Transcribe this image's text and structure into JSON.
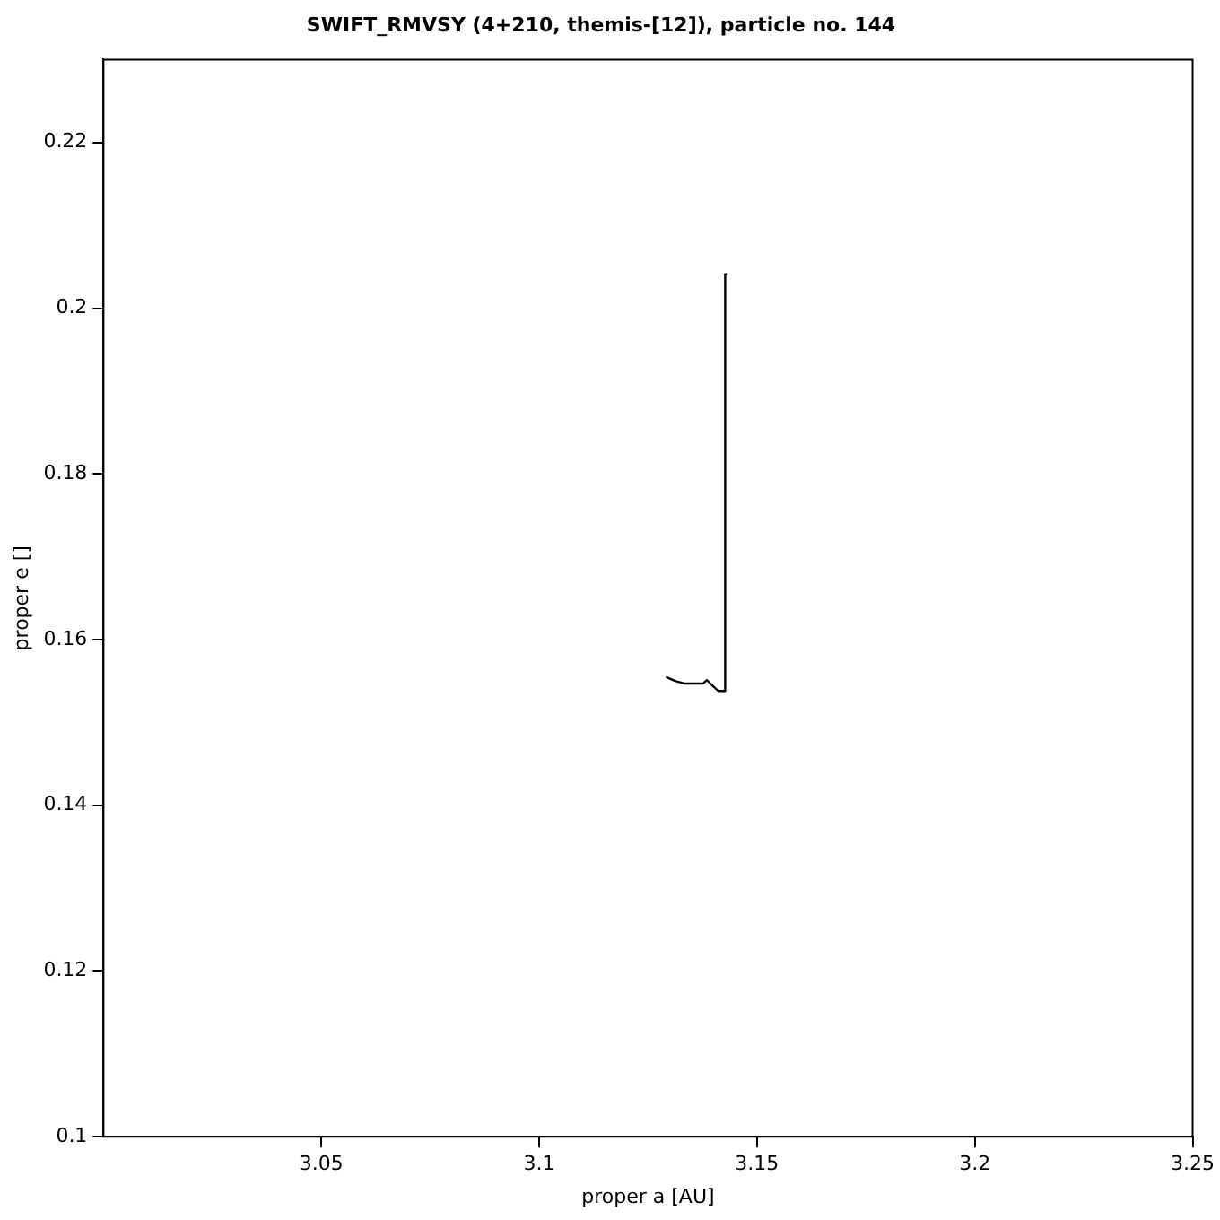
{
  "chart_data": {
    "type": "line",
    "title": "SWIFT_RMVSY (4+210, themis-[12]), particle no. 144",
    "xlabel": "proper a [AU]",
    "ylabel": "proper e []",
    "x": [
      3.1291,
      3.1312,
      3.1333,
      3.1362,
      3.1376,
      3.1385,
      3.1397,
      3.1411,
      3.1427,
      3.1427,
      3.1431
    ],
    "series": [
      {
        "color": "#000000",
        "values": [
          0.1555,
          0.155,
          0.1547,
          0.1547,
          0.1547,
          0.1551,
          0.1545,
          0.1538,
          0.1538,
          0.2041,
          0.2041
        ]
      }
    ],
    "xlim": [
      3.0,
      3.25
    ],
    "xticks": [
      3.05,
      3.1,
      3.15,
      3.2,
      3.25
    ],
    "ylim": [
      0.1,
      0.23
    ],
    "yticks": [
      0.1,
      0.12,
      0.14,
      0.16,
      0.18,
      0.2,
      0.22
    ],
    "grid": false,
    "legend": false,
    "marker": "none",
    "line_style": "solid"
  }
}
